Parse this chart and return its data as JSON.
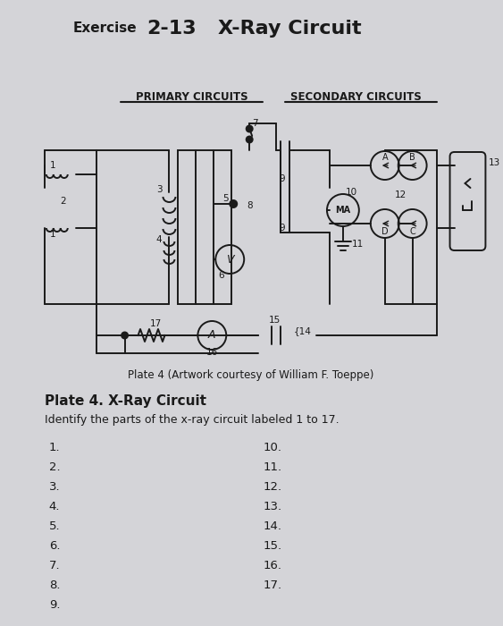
{
  "title": "Exercise  2-13   X-Ray Circuit",
  "title_exercise": "Exercise",
  "title_number": "2-13",
  "title_name": "X-Ray Circuit",
  "bg_color": "#d4d4d8",
  "line_color": "#1a1a1a",
  "plate_caption": "Plate 4 (Artwork courtesy of William F. Toeppe)",
  "plate_title": "Plate 4. X-Ray Circuit",
  "plate_desc": "Identify the parts of the x-ray circuit labeled 1 to 17.",
  "primary_label": "PRIMARY CIRCUITS",
  "secondary_label": "SECONDARY CIRCUITS",
  "left_col_nums": [
    "1.",
    "2.",
    "3.",
    "4.",
    "5.",
    "6.",
    "7.",
    "8.",
    "9."
  ],
  "right_col_nums": [
    "10.",
    "11.",
    "12.",
    "13.",
    "14.",
    "15.",
    "16.",
    "17."
  ]
}
